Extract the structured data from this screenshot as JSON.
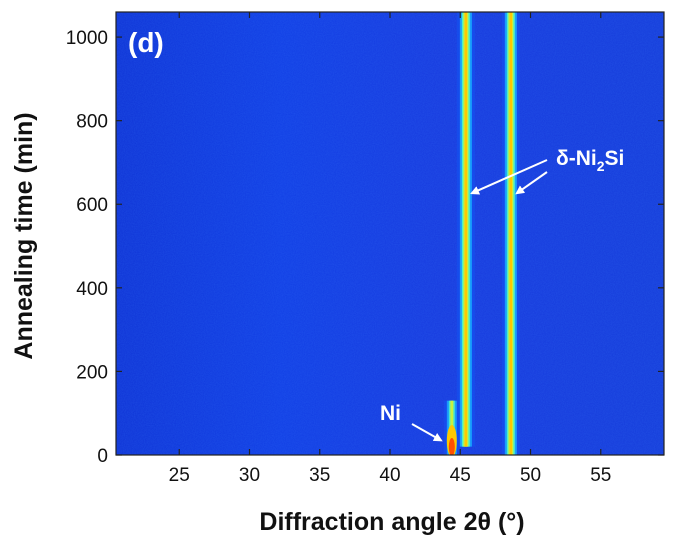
{
  "chart_data": {
    "type": "heatmap",
    "panel_label": "(d)",
    "xlabel": "Diffraction angle 2θ (°)",
    "ylabel": "Annealing time (min)",
    "xlim": [
      20.5,
      59.5
    ],
    "ylim": [
      0,
      1060
    ],
    "xticks": [
      25,
      30,
      35,
      40,
      45,
      50,
      55
    ],
    "yticks": [
      0,
      200,
      400,
      600,
      800,
      1000
    ],
    "grid": false,
    "colormap": [
      "#0a14b8",
      "#1550f0",
      "#1aa8ff",
      "#4cf0c8",
      "#c8f040",
      "#ffc800",
      "#ff5000"
    ],
    "peaks": [
      {
        "phase": "Ni",
        "two_theta": 44.4,
        "time_range": [
          0,
          130
        ]
      },
      {
        "phase": "δ-Ni2Si",
        "two_theta": 45.4,
        "time_range": [
          20,
          1060
        ]
      },
      {
        "phase": "δ-Ni2Si",
        "two_theta": 48.6,
        "time_range": [
          0,
          1060
        ]
      }
    ],
    "annotations": [
      {
        "text_main": "Ni",
        "text_sub": "",
        "text_tail": "",
        "arrow_to": [
          [
            44.2,
            35
          ]
        ]
      },
      {
        "text_main": "δ-Ni",
        "text_sub": "2",
        "text_tail": "Si",
        "arrow_to": [
          [
            45.4,
            660
          ],
          [
            48.6,
            660
          ]
        ]
      }
    ]
  }
}
